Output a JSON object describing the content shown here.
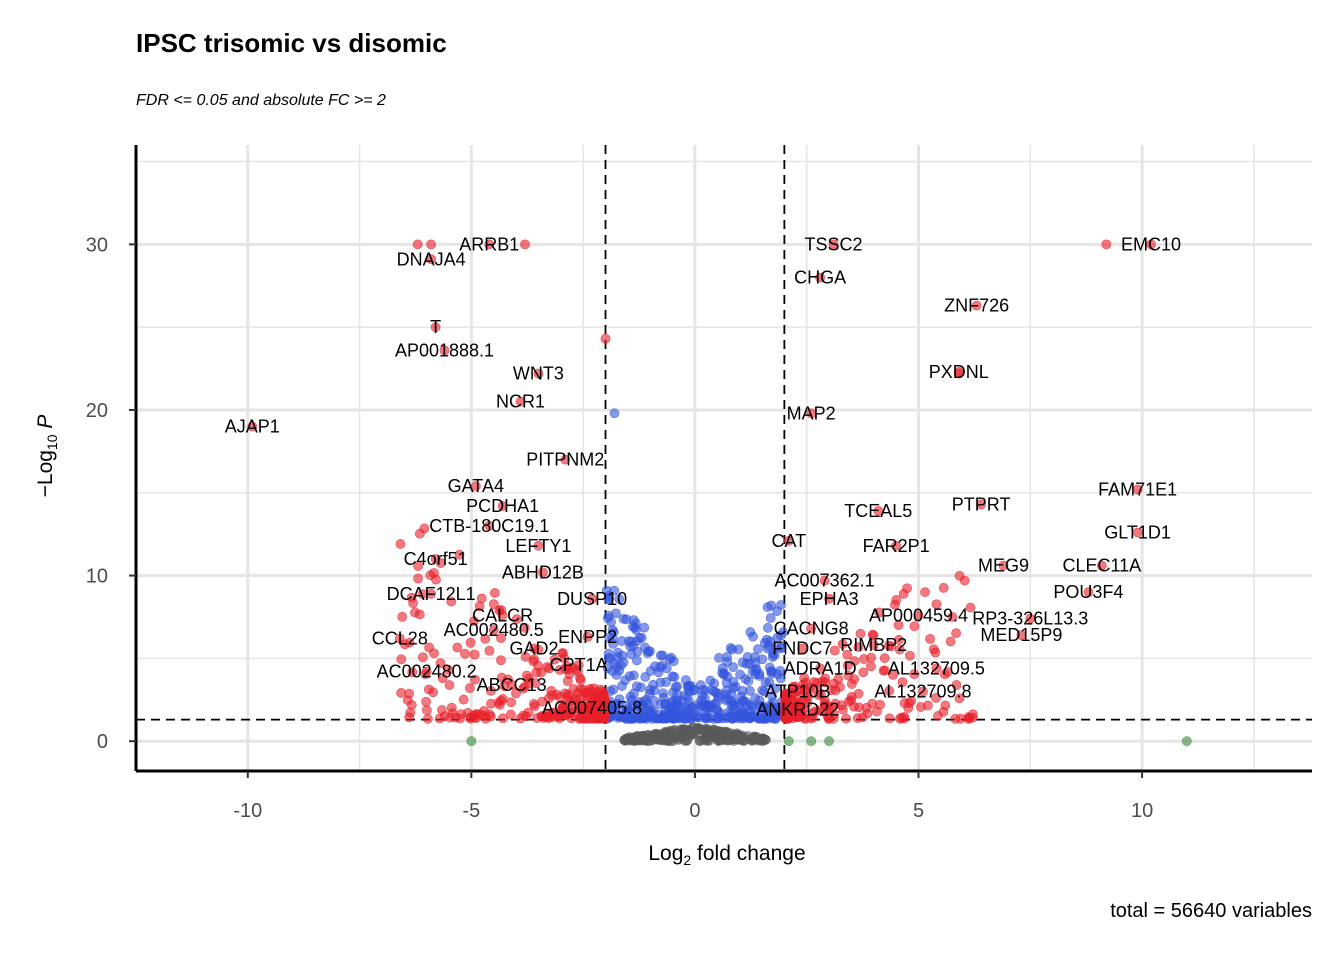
{
  "chart_data": {
    "type": "scatter",
    "title": "IPSC trisomic vs disomic",
    "subtitle": "FDR <= 0.05 and absolute FC >= 2",
    "caption": "total = 56640 variables",
    "xlabel": "Log2 fold change",
    "ylabel": "-Log10 P",
    "xlim": [
      -12.5,
      13.8
    ],
    "ylim": [
      -1.8,
      36
    ],
    "x_ticks": [
      -10,
      -5,
      0,
      5,
      10
    ],
    "x_tick_labels": [
      "-10",
      "-5",
      "0",
      "5",
      "10"
    ],
    "y_ticks": [
      0,
      10,
      20,
      30
    ],
    "y_tick_labels": [
      "0",
      "10",
      "20",
      "30"
    ],
    "grid": true,
    "fc_cutoff": 2,
    "p_cutoff_log10": 1.3,
    "colors": {
      "ns": "#5a5a5a",
      "fc_only": "#3a8a3a",
      "p_only": "#3355dd",
      "both": "#e8202a"
    },
    "labeled_points": [
      {
        "label": "AJAP1",
        "x": -9.9,
        "y": 19.0
      },
      {
        "label": "DNAJA4",
        "x": -5.9,
        "y": 29.1
      },
      {
        "label": "ARRB1",
        "x": -4.6,
        "y": 30.0
      },
      {
        "label": "T",
        "x": -5.8,
        "y": 25.0
      },
      {
        "label": "AP001888.1",
        "x": -5.6,
        "y": 23.6
      },
      {
        "label": "WNT3",
        "x": -3.5,
        "y": 22.2
      },
      {
        "label": "NCR1",
        "x": -3.9,
        "y": 20.5
      },
      {
        "label": "PITPNM2",
        "x": -2.9,
        "y": 17.0
      },
      {
        "label": "GATA4",
        "x": -4.9,
        "y": 15.4
      },
      {
        "label": "PCDHA1",
        "x": -4.3,
        "y": 14.2
      },
      {
        "label": "CTB-180C19.1",
        "x": -4.6,
        "y": 13.0
      },
      {
        "label": "C4orf51",
        "x": -5.8,
        "y": 11.0
      },
      {
        "label": "LEFTY1",
        "x": -3.5,
        "y": 11.8
      },
      {
        "label": "ABHD12B",
        "x": -3.4,
        "y": 10.2
      },
      {
        "label": "DCAF12L1",
        "x": -5.9,
        "y": 8.9
      },
      {
        "label": "DUSP10",
        "x": -2.3,
        "y": 8.6
      },
      {
        "label": "CALCR",
        "x": -4.3,
        "y": 7.6
      },
      {
        "label": "AC002480.5",
        "x": -4.5,
        "y": 6.7
      },
      {
        "label": "CCL28",
        "x": -6.6,
        "y": 6.2
      },
      {
        "label": "GAD2",
        "x": -3.6,
        "y": 5.6
      },
      {
        "label": "ENPP2",
        "x": -2.4,
        "y": 6.3
      },
      {
        "label": "AC002480.2",
        "x": -6.0,
        "y": 4.2
      },
      {
        "label": "CPT1A",
        "x": -2.6,
        "y": 4.6
      },
      {
        "label": "ABCC13",
        "x": -4.1,
        "y": 3.4
      },
      {
        "label": "AC007405.8",
        "x": -2.3,
        "y": 2.0
      },
      {
        "label": "TSSC2",
        "x": 3.1,
        "y": 30.0
      },
      {
        "label": "CHGA",
        "x": 2.8,
        "y": 28.0
      },
      {
        "label": "EMC10",
        "x": 10.2,
        "y": 30.0
      },
      {
        "label": "ZNF726",
        "x": 6.3,
        "y": 26.3
      },
      {
        "label": "PXDNL",
        "x": 5.9,
        "y": 22.3
      },
      {
        "label": "MAP2",
        "x": 2.6,
        "y": 19.8
      },
      {
        "label": "TCEAL5",
        "x": 4.1,
        "y": 13.9
      },
      {
        "label": "PTPRT",
        "x": 6.4,
        "y": 14.3
      },
      {
        "label": "FAM71E1",
        "x": 9.9,
        "y": 15.2
      },
      {
        "label": "GLT1D1",
        "x": 9.9,
        "y": 12.6
      },
      {
        "label": "CAT",
        "x": 2.1,
        "y": 12.1
      },
      {
        "label": "FAR2P1",
        "x": 4.5,
        "y": 11.8
      },
      {
        "label": "MEG9",
        "x": 6.9,
        "y": 10.6
      },
      {
        "label": "CLEC11A",
        "x": 9.1,
        "y": 10.6
      },
      {
        "label": "AC007362.1",
        "x": 2.9,
        "y": 9.7
      },
      {
        "label": "EPHA3",
        "x": 3.0,
        "y": 8.6
      },
      {
        "label": "POU3F4",
        "x": 8.8,
        "y": 9.0
      },
      {
        "label": "AP000459.4",
        "x": 5.0,
        "y": 7.6
      },
      {
        "label": "RP3-326L13.3",
        "x": 7.5,
        "y": 7.4
      },
      {
        "label": "CACNG8",
        "x": 2.6,
        "y": 6.8
      },
      {
        "label": "MED15P9",
        "x": 7.3,
        "y": 6.4
      },
      {
        "label": "FNDC7",
        "x": 2.4,
        "y": 5.6
      },
      {
        "label": "RIMBP2",
        "x": 4.0,
        "y": 5.8
      },
      {
        "label": "AL132709.5",
        "x": 5.4,
        "y": 4.4
      },
      {
        "label": "ADRA1D",
        "x": 2.8,
        "y": 4.4
      },
      {
        "label": "ATP10B",
        "x": 2.3,
        "y": 3.0
      },
      {
        "label": "AL132709.8",
        "x": 5.1,
        "y": 3.0
      },
      {
        "label": "ANKRD22",
        "x": 2.3,
        "y": 1.9
      }
    ],
    "unlabeled_highlights": [
      {
        "x": -6.2,
        "y": 30.0
      },
      {
        "x": -5.9,
        "y": 30.0
      },
      {
        "x": -3.8,
        "y": 30.0
      },
      {
        "x": 9.2,
        "y": 30.0
      },
      {
        "x": 5.9,
        "y": 22.2
      },
      {
        "x": -2.0,
        "y": 24.3
      },
      {
        "x": -1.8,
        "y": 19.8
      },
      {
        "x": 11.0,
        "y": 0.0
      },
      {
        "x": 3.0,
        "y": 0.0
      },
      {
        "x": 2.6,
        "y": 0.0
      },
      {
        "x": 2.1,
        "y": 0.0
      },
      {
        "x": -5.0,
        "y": 0.0
      }
    ]
  }
}
